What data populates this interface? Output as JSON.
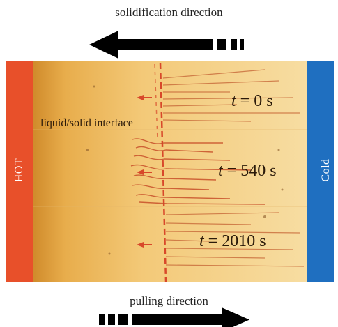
{
  "captions": {
    "top": "solidification direction",
    "bottom": "pulling direction"
  },
  "bars": {
    "hot_label": "HOT",
    "cold_label": "Cold",
    "hot_color": "#e8502a",
    "cold_color": "#1f6fc0"
  },
  "interface_label": "liquid/solid interface",
  "time_labels": [
    {
      "var": "t",
      "text": " = 0 s"
    },
    {
      "var": "t",
      "text": " = 540 s"
    },
    {
      "var": "t",
      "text": " = 2010 s"
    }
  ],
  "colors": {
    "sample_light": "#f6d590",
    "sample_dark": "#d99a3a",
    "interface": "#d8482a",
    "arrow": "#000000"
  }
}
